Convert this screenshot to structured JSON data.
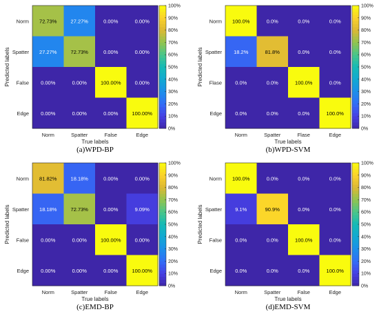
{
  "colorbar_ticks": [
    "0%",
    "10%",
    "20%",
    "30%",
    "40%",
    "50%",
    "60%",
    "70%",
    "80%",
    "90%",
    "100%"
  ],
  "chart_data": [
    {
      "type": "heatmap",
      "caption": "(a)WPD-BP",
      "xlabel": "True labels",
      "ylabel": "Predicted labels",
      "x_categories": [
        "Norm",
        "Spatter",
        "False",
        "Edge"
      ],
      "y_categories": [
        "Norm",
        "Spatter",
        "False",
        "Edge"
      ],
      "values": [
        [
          72.73,
          27.27,
          0,
          0
        ],
        [
          27.27,
          72.73,
          0,
          0
        ],
        [
          0,
          0,
          100,
          0
        ],
        [
          0,
          0,
          0,
          100
        ]
      ],
      "cell_labels": [
        [
          "72.73%",
          "27.27%",
          "0.00%",
          "0.00%"
        ],
        [
          "27.27%",
          "72.73%",
          "0.00%",
          "0.00%"
        ],
        [
          "0.00%",
          "0.00%",
          "100.00%",
          "0.00%"
        ],
        [
          "0.00%",
          "0.00%",
          "0.00%",
          "100.00%"
        ]
      ],
      "zlim": [
        0,
        100
      ]
    },
    {
      "type": "heatmap",
      "caption": "(b)WPD-SVM",
      "xlabel": "True labels",
      "ylabel": "Predicted labels",
      "x_categories": [
        "Norm",
        "Spatter",
        "Flase",
        "Edge"
      ],
      "y_categories": [
        "Norm",
        "Spatter",
        "Flase",
        "Edge"
      ],
      "values": [
        [
          100,
          0,
          0,
          0
        ],
        [
          18.2,
          81.8,
          0,
          0
        ],
        [
          0,
          0,
          100,
          0
        ],
        [
          0,
          0,
          0,
          100
        ]
      ],
      "cell_labels": [
        [
          "100.0%",
          "0.0%",
          "0.0%",
          "0.0%"
        ],
        [
          "18.2%",
          "81.8%",
          "0.0%",
          "0.0%"
        ],
        [
          "0.0%",
          "0.0%",
          "100.0%",
          "0.0%"
        ],
        [
          "0.0%",
          "0.0%",
          "0.0%",
          "100.0%"
        ]
      ],
      "zlim": [
        0,
        100
      ]
    },
    {
      "type": "heatmap",
      "caption": "(c)EMD-BP",
      "xlabel": "True labels",
      "ylabel": "Predicted labels",
      "x_categories": [
        "Norm",
        "Spatter",
        "False",
        "Edge"
      ],
      "y_categories": [
        "Norm",
        "Spatter",
        "False",
        "Edge"
      ],
      "values": [
        [
          81.82,
          18.18,
          0,
          0
        ],
        [
          18.18,
          72.73,
          0,
          9.09
        ],
        [
          0,
          0,
          100,
          0
        ],
        [
          0,
          0,
          0,
          100
        ]
      ],
      "cell_labels": [
        [
          "81.82%",
          "18.18%",
          "0.00%",
          "0.00%"
        ],
        [
          "18.18%",
          "72.73%",
          "0.00%",
          "9.09%"
        ],
        [
          "0.00%",
          "0.00%",
          "100.00%",
          "0.00%"
        ],
        [
          "0.00%",
          "0.00%",
          "0.00%",
          "100.00%"
        ]
      ],
      "zlim": [
        0,
        100
      ]
    },
    {
      "type": "heatmap",
      "caption": "(d)EMD-SVM",
      "xlabel": "True labels",
      "ylabel": "Predicted labels",
      "x_categories": [
        "Norm",
        "Spatter",
        "False",
        "Edge"
      ],
      "y_categories": [
        "Norm",
        "Spatter",
        "False",
        "Edge"
      ],
      "values": [
        [
          100,
          0,
          0,
          0
        ],
        [
          9.1,
          90.9,
          0,
          0
        ],
        [
          0,
          0,
          100,
          0
        ],
        [
          0,
          0,
          0,
          100
        ]
      ],
      "cell_labels": [
        [
          "100.0%",
          "0.0%",
          "0.0%",
          "0.0%"
        ],
        [
          "9.1%",
          "90.9%",
          "0.0%",
          "0.0%"
        ],
        [
          "0.0%",
          "0.0%",
          "100.0%",
          "0.0%"
        ],
        [
          "0.0%",
          "0.0%",
          "0.0%",
          "100.0%"
        ]
      ],
      "zlim": [
        0,
        100
      ]
    }
  ]
}
